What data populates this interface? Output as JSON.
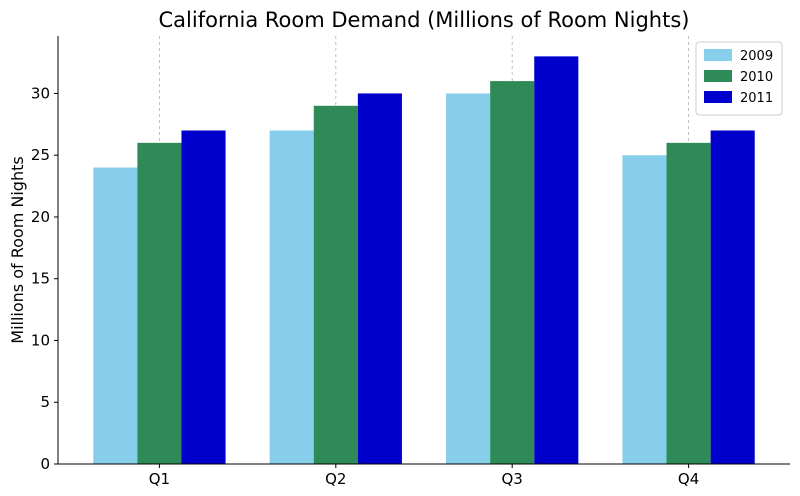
{
  "chart_data": {
    "type": "bar",
    "title": "California Room Demand (Millions of Room Nights)",
    "xlabel": "",
    "ylabel": "Millions of Room Nights",
    "categories": [
      "Q1",
      "Q2",
      "Q3",
      "Q4"
    ],
    "series": [
      {
        "name": "2009",
        "color": "#87ceeb",
        "values": [
          24,
          27,
          30,
          25
        ]
      },
      {
        "name": "2010",
        "color": "#2e8b57",
        "values": [
          26,
          29,
          31,
          26
        ]
      },
      {
        "name": "2011",
        "color": "#0000cd",
        "values": [
          27,
          30,
          33,
          27
        ]
      }
    ],
    "ylim": [
      0,
      34.65
    ],
    "yticks": [
      0,
      5,
      10,
      15,
      20,
      25,
      30
    ],
    "grid": "x-dashed",
    "legend_position": "top-right"
  }
}
